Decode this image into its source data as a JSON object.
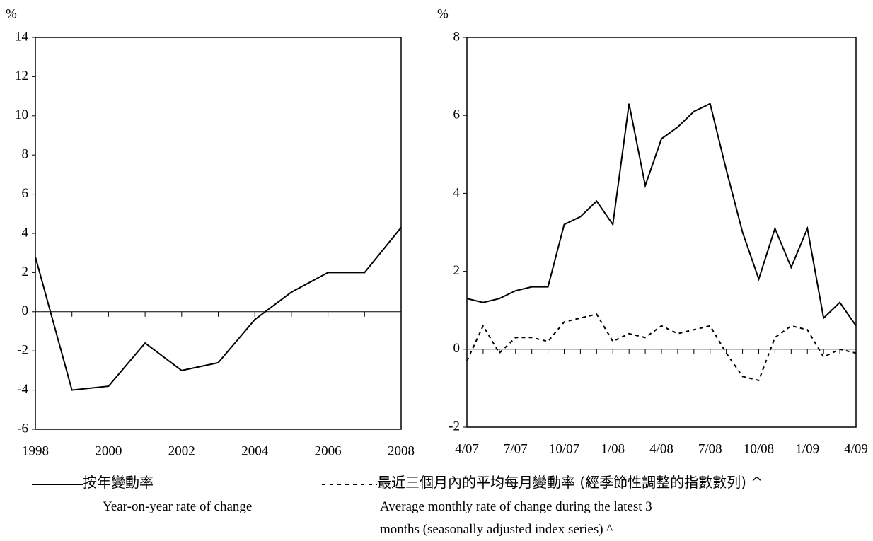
{
  "chart_data": [
    {
      "type": "line",
      "y_label": "%",
      "x": [
        1998,
        1999,
        2000,
        2001,
        2002,
        2003,
        2004,
        2005,
        2006,
        2007,
        2008
      ],
      "xlim": [
        1998,
        2008
      ],
      "xticks": [
        1998,
        2000,
        2002,
        2004,
        2006,
        2008
      ],
      "ylim": [
        -6,
        14
      ],
      "yticks": [
        -6,
        -4,
        -2,
        0,
        2,
        4,
        6,
        8,
        10,
        12,
        14
      ],
      "series": [
        {
          "name": "按年變動率",
          "name_en": "Year-on-year rate of change",
          "color": "#000000",
          "dash": false,
          "values": [
            2.8,
            -4.0,
            -3.8,
            -1.6,
            -3.0,
            -2.6,
            -0.4,
            1.0,
            2.0,
            2.0,
            4.3
          ]
        }
      ]
    },
    {
      "type": "line",
      "y_label": "%",
      "categories": [
        "4/07",
        null,
        null,
        "7/07",
        null,
        null,
        "10/07",
        null,
        null,
        "1/08",
        null,
        null,
        "4/08",
        null,
        null,
        "7/08",
        null,
        null,
        "10/08",
        null,
        null,
        "1/09",
        null,
        null,
        "4/09"
      ],
      "ylim": [
        -2,
        8
      ],
      "yticks": [
        -2,
        0,
        2,
        4,
        6,
        8
      ],
      "series": [
        {
          "name": "按年變動率",
          "name_en": "Year-on-year rate of change",
          "color": "#000000",
          "dash": false,
          "values": [
            1.3,
            1.2,
            1.3,
            1.5,
            1.6,
            1.6,
            3.2,
            3.4,
            3.8,
            3.2,
            6.3,
            4.2,
            5.4,
            5.7,
            6.1,
            6.3,
            4.6,
            3.0,
            1.8,
            3.1,
            2.1,
            3.1,
            0.8,
            1.2,
            0.6
          ]
        },
        {
          "name": "最近三個月內的平均每月變動率 (經季節性調整的指數數列) ^",
          "name_en": "Average monthly rate of change during the latest 3 months (seasonally adjusted index series) ^",
          "color": "#000000",
          "dash": true,
          "values": [
            -0.3,
            0.6,
            -0.1,
            0.3,
            0.3,
            0.2,
            0.7,
            0.8,
            0.9,
            0.2,
            0.4,
            0.3,
            0.6,
            0.4,
            0.5,
            0.6,
            -0.1,
            -0.7,
            -0.8,
            0.3,
            0.6,
            0.5,
            -0.2,
            0.0,
            -0.1
          ]
        }
      ]
    }
  ]
}
